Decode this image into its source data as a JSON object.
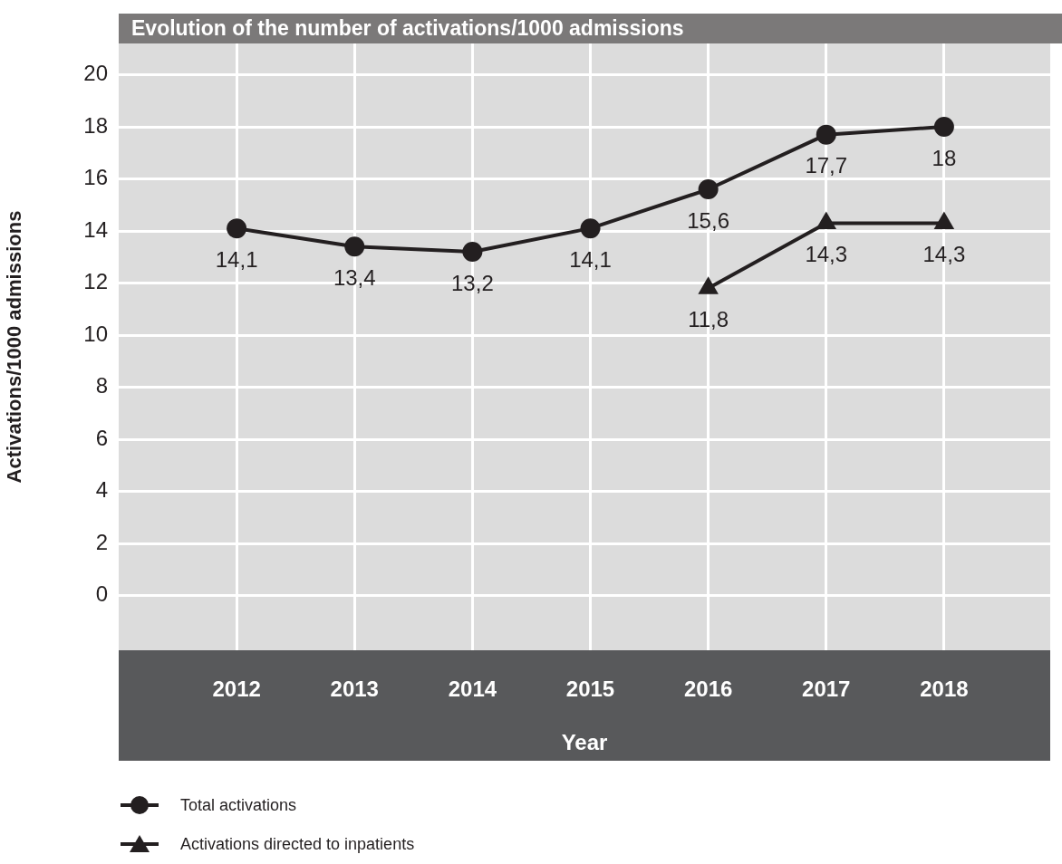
{
  "chart_data": {
    "type": "line",
    "title": "Evolution of the number of activations/1000 admissions",
    "xlabel": "Year",
    "ylabel": "Activations/1000 admissions",
    "x": [
      2012,
      2013,
      2014,
      2015,
      2016,
      2017,
      2018
    ],
    "xlim": [
      2011,
      2018.9
    ],
    "xticks": [
      2012,
      2013,
      2014,
      2015,
      2016,
      2017,
      2018
    ],
    "ylim": [
      -2.1,
      21.2
    ],
    "yticks": [
      0,
      2,
      4,
      6,
      8,
      10,
      12,
      14,
      16,
      18,
      20
    ],
    "grid": true,
    "legend": "bottom left",
    "line_style": "solid",
    "series": [
      {
        "name": "Total activations",
        "color": "#231f20",
        "marker": "circle",
        "values": [
          14.1,
          13.4,
          13.2,
          14.1,
          15.6,
          17.7,
          18
        ],
        "value_labels": [
          "14,1",
          "13,4",
          "13,2",
          "14,1",
          "15,6",
          "17,7",
          "18"
        ]
      },
      {
        "name": "Activations directed to inpatients",
        "color": "#231f20",
        "marker": "triangle",
        "values": [
          null,
          null,
          null,
          null,
          11.8,
          14.3,
          14.3
        ],
        "value_labels": [
          null,
          null,
          null,
          null,
          "11,8",
          "14,3",
          "14,3"
        ]
      }
    ]
  }
}
